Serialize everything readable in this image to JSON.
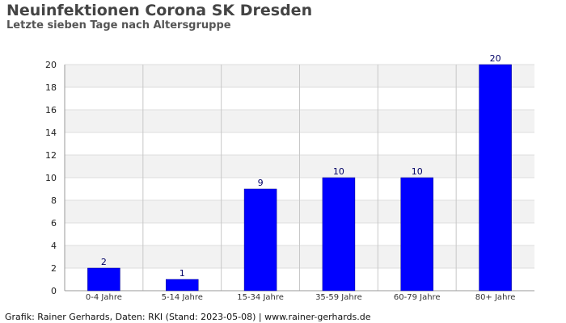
{
  "title": "Neuinfektionen Corona SK Dresden",
  "subtitle": "Letzte sieben Tage nach Altersgruppe",
  "footer": "Grafik: Rainer Gerhards, Daten: RKI (Stand: 2023-05-08) | www.rainer-gerhards.de",
  "chart_data": {
    "type": "bar",
    "title": "Neuinfektionen Corona SK Dresden",
    "subtitle": "Letzte sieben Tage nach Altersgruppe",
    "xlabel": "",
    "ylabel": "",
    "categories": [
      "0-4 Jahre",
      "5-14 Jahre",
      "15-34 Jahre",
      "35-59 Jahre",
      "60-79 Jahre",
      "80+ Jahre"
    ],
    "values": [
      2,
      1,
      9,
      10,
      10,
      20
    ],
    "ylim": [
      0,
      20
    ],
    "yticks": [
      0,
      2,
      4,
      6,
      8,
      10,
      12,
      14,
      16,
      18,
      20
    ],
    "bar_color": "#0000ff",
    "grid": true,
    "data_labels": true,
    "legend": "none"
  }
}
